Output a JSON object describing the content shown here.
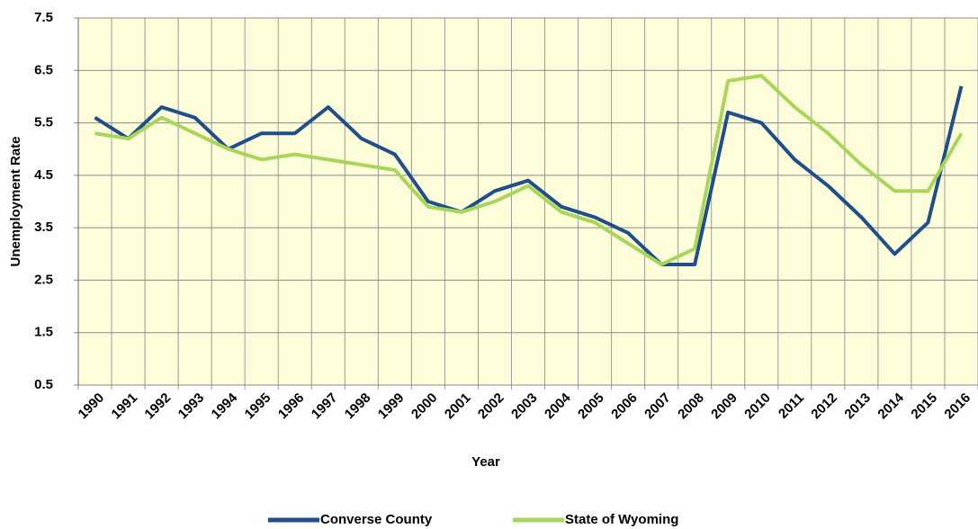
{
  "chart_data": {
    "type": "line",
    "x_label": "Year",
    "y_label": "Unemployment Rate",
    "categories": [
      "1990",
      "1991",
      "1992",
      "1993",
      "1994",
      "1995",
      "1996",
      "1997",
      "1998",
      "1999",
      "2000",
      "2001",
      "2002",
      "2003",
      "2004",
      "2005",
      "2006",
      "2007",
      "2008",
      "2009",
      "2010",
      "2011",
      "2012",
      "2013",
      "2014",
      "2015",
      "2016"
    ],
    "series": [
      {
        "name": "Converse County",
        "color": "#1f4e8c",
        "values": [
          5.6,
          5.2,
          5.8,
          5.6,
          5.0,
          5.3,
          5.3,
          5.8,
          5.2,
          4.9,
          4.0,
          3.8,
          4.2,
          4.4,
          3.9,
          3.7,
          3.4,
          2.8,
          2.8,
          5.7,
          5.5,
          4.8,
          4.3,
          3.7,
          3.0,
          3.6,
          6.2
        ]
      },
      {
        "name": "State of Wyoming",
        "color": "#a9d65a",
        "values": [
          5.3,
          5.2,
          5.6,
          5.3,
          5.0,
          4.8,
          4.9,
          4.8,
          4.7,
          4.6,
          3.9,
          3.8,
          4.0,
          4.3,
          3.8,
          3.6,
          3.2,
          2.8,
          3.1,
          6.3,
          6.4,
          5.8,
          5.3,
          4.7,
          4.2,
          4.2,
          5.3
        ]
      }
    ],
    "ylim": [
      0.5,
      7.5
    ],
    "yticks": [
      0.5,
      1.5,
      2.5,
      3.5,
      4.5,
      5.5,
      6.5,
      7.5
    ],
    "grid": true,
    "legend": "bottom",
    "background": "#fdfdd9"
  }
}
